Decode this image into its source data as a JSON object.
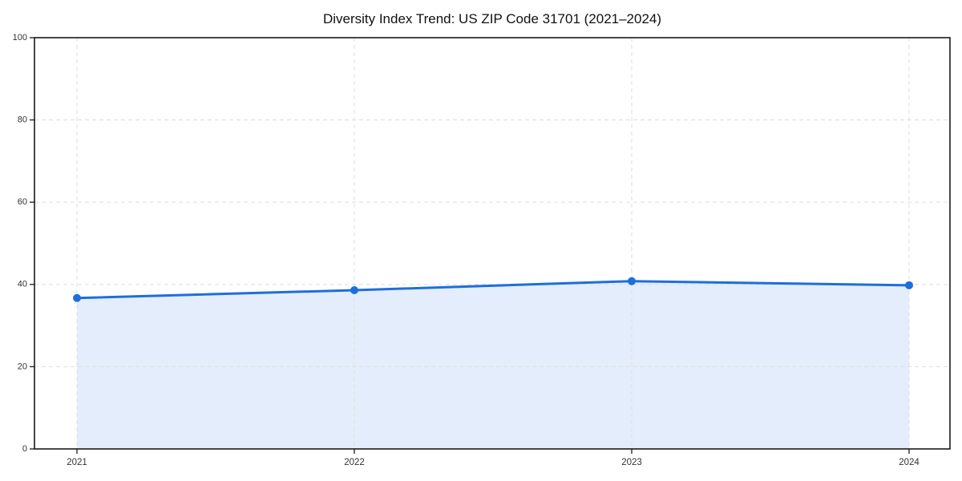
{
  "figure": {
    "background": "#ffffff"
  },
  "chart_data": {
    "type": "area",
    "title": "Diversity Index Trend: US ZIP Code 31701 (2021–2024)",
    "categories": [
      "2021",
      "2022",
      "2023",
      "2024"
    ],
    "values": [
      36.7,
      38.6,
      40.8,
      39.8
    ],
    "xlabel": "",
    "ylabel": "",
    "ylim": [
      0,
      100
    ],
    "yticks": [
      0,
      20,
      40,
      60,
      80,
      100
    ],
    "grid": true,
    "grid_style": "dashed",
    "legend_position": "none",
    "line_color": "#1e6edd",
    "marker_color": "#1e6edd",
    "fill_color": "#1e6edd",
    "fill_opacity": 0.12,
    "gridline_color": "#e0e0e0",
    "axis_color": "#1a1a1a",
    "tick_color": "#1a1a1a",
    "tick_label_color": "#333333",
    "title_color": "#111111"
  }
}
